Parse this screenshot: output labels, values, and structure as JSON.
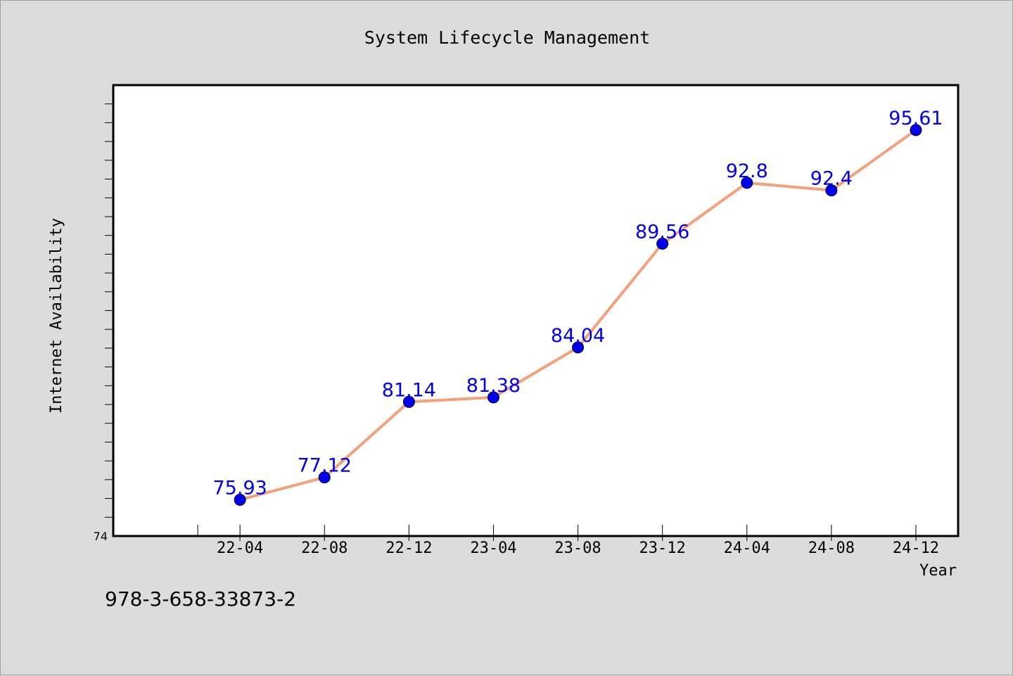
{
  "chart_data": {
    "type": "line",
    "title": "System Lifecycle Management",
    "xlabel": "Year",
    "ylabel": "Internet Availability",
    "categories": [
      "22-04",
      "22-08",
      "22-12",
      "23-04",
      "23-08",
      "23-12",
      "24-04",
      "24-08",
      "24-12"
    ],
    "series": [
      {
        "values": [
          75.93,
          77.12,
          81.14,
          81.38,
          84.04,
          89.56,
          92.8,
          92.4,
          95.61
        ],
        "data_labels": [
          "75.93",
          "77.12",
          "81.14",
          "81.38",
          "84.04",
          "89.56",
          "92.8",
          "92.4",
          "95.61"
        ],
        "line_color": "#f4a07a",
        "marker_color": "#0000ee",
        "label_color": "#0000ee"
      }
    ],
    "ylim": [
      74,
      98
    ],
    "y_tick_labels": [
      "74"
    ],
    "grid": false,
    "legend": "none"
  },
  "caption": "978-3-658-33873-2",
  "colors": {
    "background": "#dcdcdc",
    "plot_background": "#ffffff"
  }
}
